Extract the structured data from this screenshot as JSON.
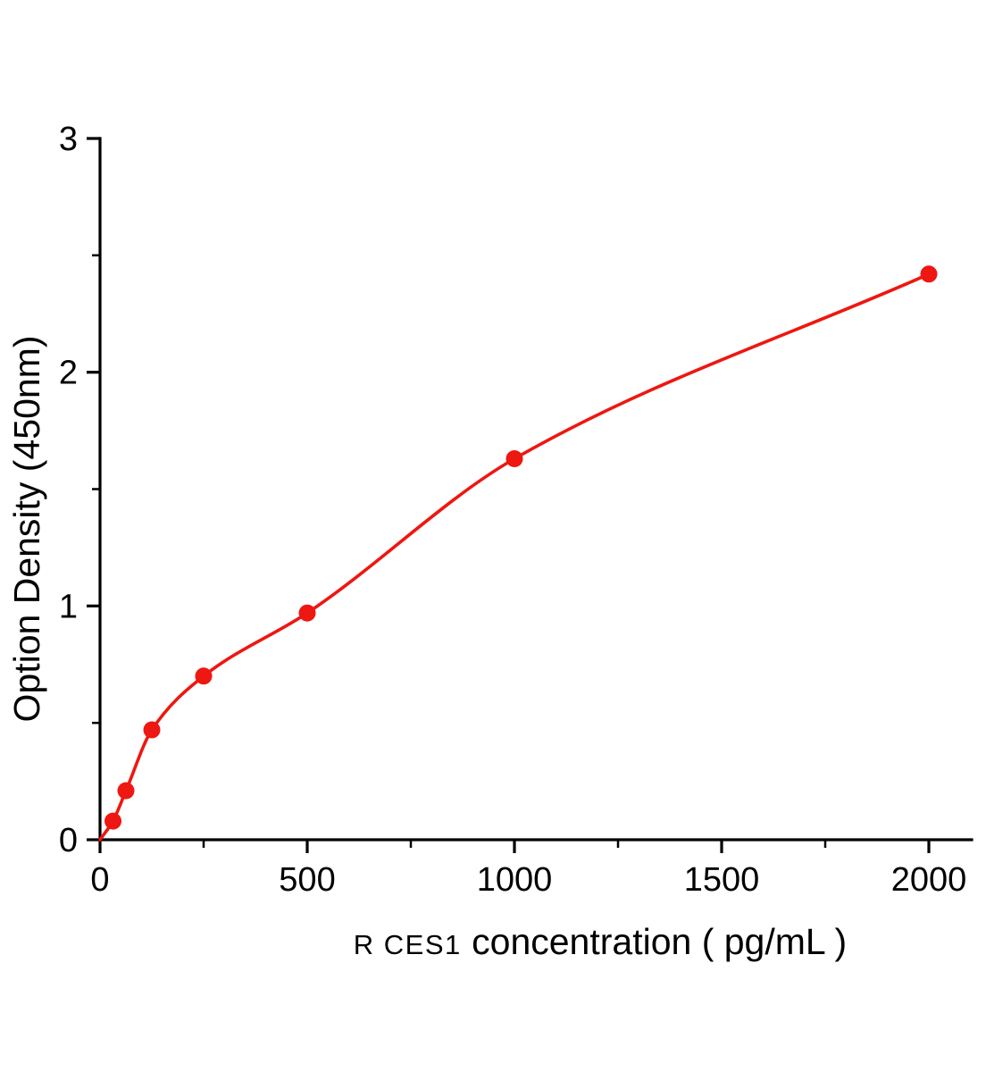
{
  "chart_data": {
    "type": "scatter",
    "title": "",
    "xlabel_prefix": "R CES1",
    "xlabel_rest": " concentration ( pg/mL )",
    "ylabel": "Option Density  (450nm)",
    "x": [
      31.25,
      62.5,
      125,
      250,
      500,
      1000,
      2000
    ],
    "y": [
      0.08,
      0.21,
      0.47,
      0.7,
      0.97,
      1.63,
      2.42
    ],
    "curve_start_x": 0,
    "curve_start_y": 0,
    "xlim": [
      0,
      2000
    ],
    "ylim": [
      0,
      3
    ],
    "x_ticks": [
      0,
      500,
      1000,
      1500,
      2000
    ],
    "y_ticks": [
      0,
      1,
      2,
      3
    ],
    "x_minor_step": 250,
    "y_minor_step": 0.5,
    "legend": "none",
    "grid": "off",
    "accent_color": "#ee1711",
    "axis_color": "#000000"
  }
}
